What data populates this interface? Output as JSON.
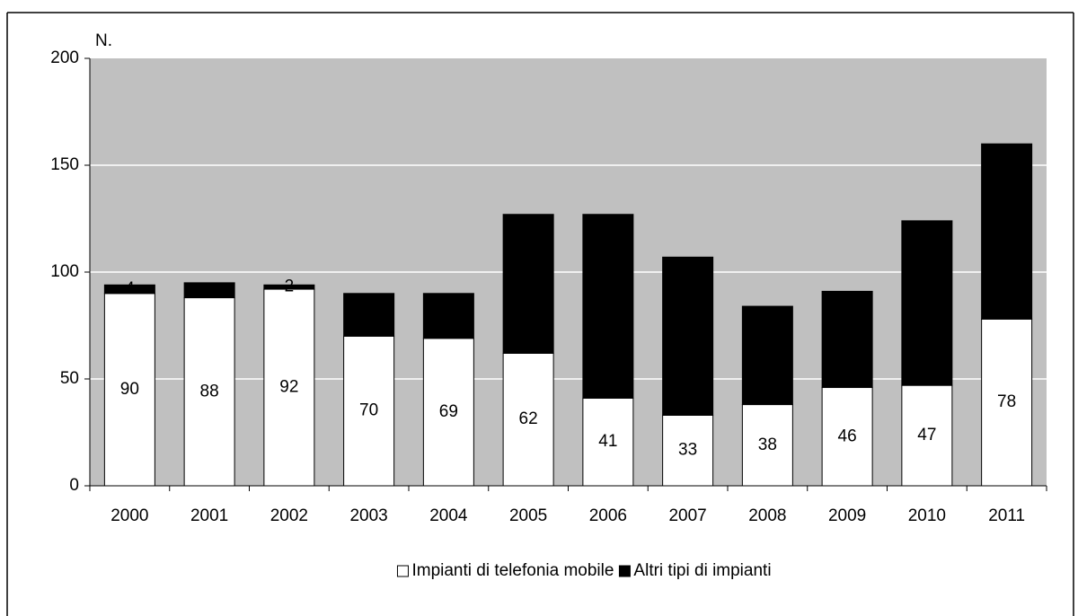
{
  "chart_data": {
    "type": "stacked-bar",
    "y_label": "N.",
    "categories": [
      "2000",
      "2001",
      "2002",
      "2003",
      "2004",
      "2005",
      "2006",
      "2007",
      "2008",
      "2009",
      "2010",
      "2011"
    ],
    "series": [
      {
        "name": "Impianti di telefonia mobile",
        "color": "#ffffff",
        "values": [
          90,
          88,
          92,
          70,
          69,
          62,
          41,
          33,
          38,
          46,
          47,
          78
        ]
      },
      {
        "name": "Altri tipi di impianti",
        "color": "#000000",
        "values": [
          4,
          7,
          2,
          20,
          21,
          65,
          86,
          74,
          46,
          45,
          77,
          82
        ]
      }
    ],
    "ylim": [
      0,
      200
    ],
    "yticks": [
      0,
      50,
      100,
      150,
      200
    ],
    "grid": true,
    "plot_background": "#c0c0c0",
    "legend": "bottom"
  }
}
